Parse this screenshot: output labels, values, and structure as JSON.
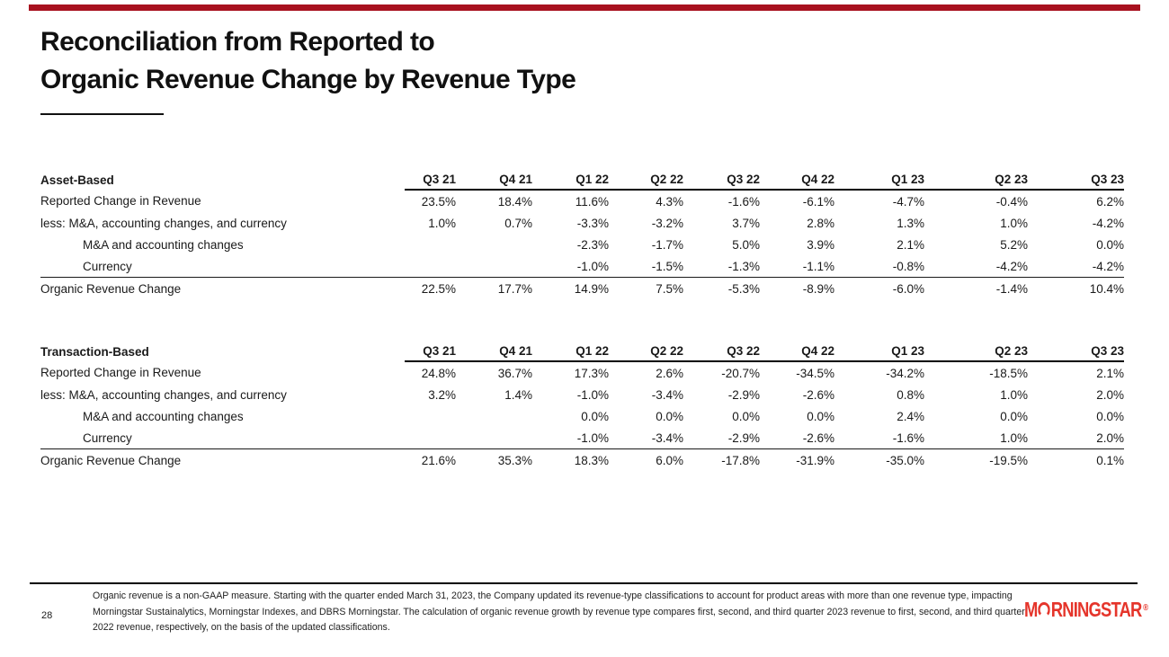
{
  "slide": {
    "accent_bar_color": "#a8111f",
    "title_lines": [
      "Reconciliation from Reported to",
      "Organic Revenue Change by Revenue Type"
    ],
    "page_number": "28",
    "footnote_lines": [
      "Organic revenue is a non-GAAP measure. Starting with the quarter ended March 31, 2023, the Company updated its revenue-type classifications to account for product areas with more than one revenue type, impacting",
      "Morningstar Sustainalytics, Morningstar Indexes, and DBRS Morningstar. The calculation of organic revenue growth by revenue type compares first, second, and third quarter 2023 revenue to first, second, and third quarter",
      "2022 revenue, respectively, on the basis of the updated classifications."
    ],
    "logo": {
      "prefix": "M",
      "suffix": "RNINGSTAR",
      "reg_mark": "®",
      "color": "#e5352b"
    }
  },
  "tables": [
    {
      "id": "asset-based-table",
      "section_label": "Asset-Based",
      "quarters": [
        "Q3 21",
        "Q4 21",
        "Q1 22",
        "Q2 22",
        "Q3 22",
        "Q4 22",
        "Q1 23",
        "Q2 23",
        "Q3 23"
      ],
      "rows": [
        {
          "label": "Reported Change in Revenue",
          "indent": 0,
          "rule_above": false,
          "values": [
            "23.5%",
            "18.4%",
            "11.6%",
            "4.3%",
            "-1.6%",
            "-6.1%",
            "-4.7%",
            "-0.4%",
            "6.2%"
          ]
        },
        {
          "label": "less: M&A, accounting changes, and currency",
          "indent": 0,
          "rule_above": false,
          "values": [
            "1.0%",
            "0.7%",
            "-3.3%",
            "-3.2%",
            "3.7%",
            "2.8%",
            "1.3%",
            "1.0%",
            "-4.2%"
          ]
        },
        {
          "label": "M&A and accounting changes",
          "indent": 1,
          "rule_above": false,
          "values": [
            "",
            "",
            "-2.3%",
            "-1.7%",
            "5.0%",
            "3.9%",
            "2.1%",
            "5.2%",
            "0.0%"
          ]
        },
        {
          "label": "Currency",
          "indent": 1,
          "rule_above": false,
          "values": [
            "",
            "",
            "-1.0%",
            "-1.5%",
            "-1.3%",
            "-1.1%",
            "-0.8%",
            "-4.2%",
            "-4.2%"
          ]
        },
        {
          "label": "Organic Revenue Change",
          "indent": 0,
          "rule_above": true,
          "values": [
            "22.5%",
            "17.7%",
            "14.9%",
            "7.5%",
            "-5.3%",
            "-8.9%",
            "-6.0%",
            "-1.4%",
            "10.4%"
          ]
        }
      ]
    },
    {
      "id": "transaction-based-table",
      "section_label": "Transaction-Based",
      "quarters": [
        "Q3 21",
        "Q4 21",
        "Q1 22",
        "Q2 22",
        "Q3 22",
        "Q4 22",
        "Q1 23",
        "Q2 23",
        "Q3 23"
      ],
      "rows": [
        {
          "label": "Reported Change in Revenue",
          "indent": 0,
          "rule_above": false,
          "values": [
            "24.8%",
            "36.7%",
            "17.3%",
            "2.6%",
            "-20.7%",
            "-34.5%",
            "-34.2%",
            "-18.5%",
            "2.1%"
          ]
        },
        {
          "label": "less: M&A, accounting changes, and currency",
          "indent": 0,
          "rule_above": false,
          "values": [
            "3.2%",
            "1.4%",
            "-1.0%",
            "-3.4%",
            "-2.9%",
            "-2.6%",
            "0.8%",
            "1.0%",
            "2.0%"
          ]
        },
        {
          "label": "M&A and accounting changes",
          "indent": 1,
          "rule_above": false,
          "values": [
            "",
            "",
            "0.0%",
            "0.0%",
            "0.0%",
            "0.0%",
            "2.4%",
            "0.0%",
            "0.0%"
          ]
        },
        {
          "label": "Currency",
          "indent": 1,
          "rule_above": false,
          "values": [
            "",
            "",
            "-1.0%",
            "-3.4%",
            "-2.9%",
            "-2.6%",
            "-1.6%",
            "1.0%",
            "2.0%"
          ]
        },
        {
          "label": "Organic Revenue Change",
          "indent": 0,
          "rule_above": true,
          "values": [
            "21.6%",
            "35.3%",
            "18.3%",
            "6.0%",
            "-17.8%",
            "-31.9%",
            "-35.0%",
            "-19.5%",
            "0.1%"
          ]
        }
      ]
    }
  ]
}
